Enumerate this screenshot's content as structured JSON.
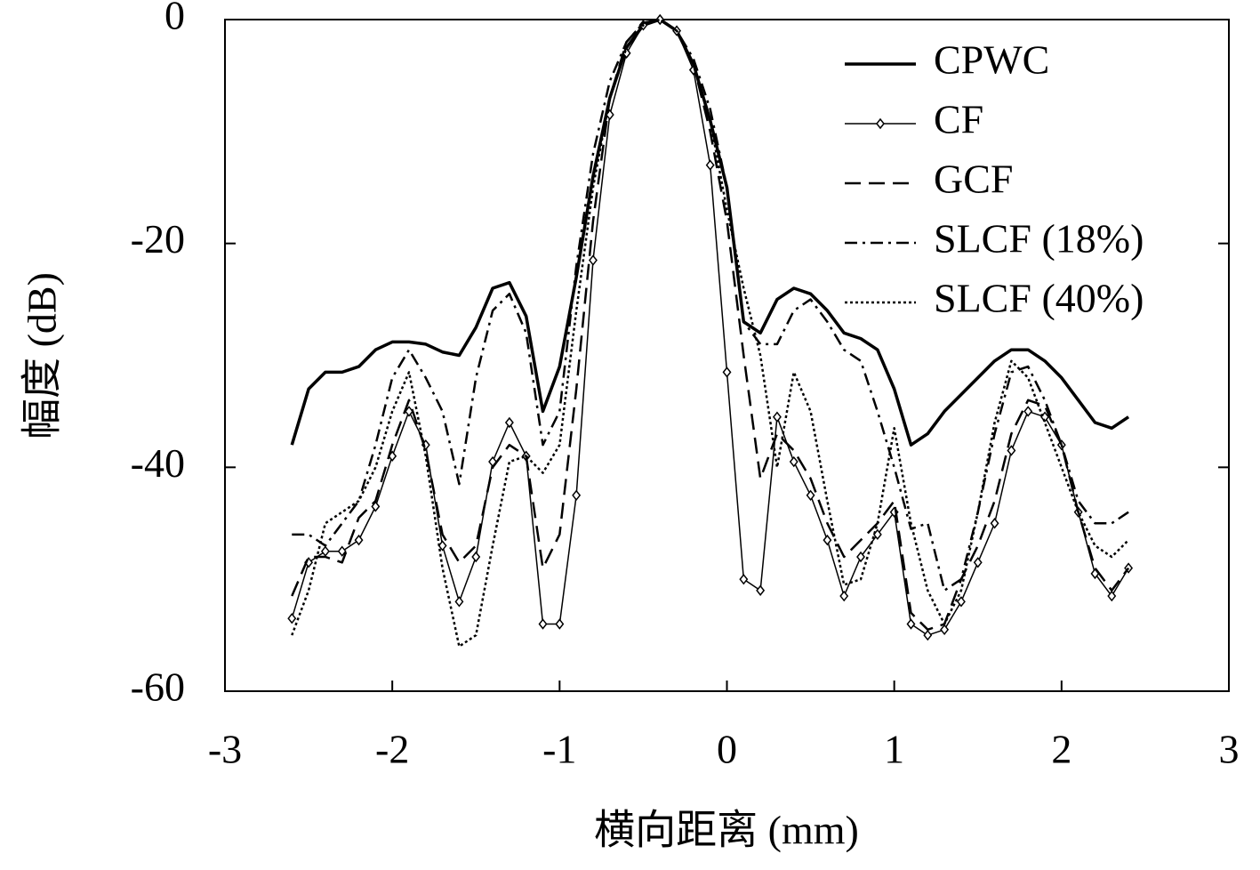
{
  "chart_data": {
    "type": "line",
    "xlabel": "横向距离 (mm)",
    "ylabel": "幅度 (dB)",
    "xlim": [
      -3,
      3
    ],
    "ylim": [
      -60,
      0
    ],
    "xticks": [
      -3,
      -2,
      -1,
      0,
      1,
      2,
      3
    ],
    "yticks": [
      -60,
      -40,
      -20,
      0
    ],
    "legend": "upper right",
    "x": [
      -2.6,
      -2.5,
      -2.4,
      -2.3,
      -2.2,
      -2.1,
      -2.0,
      -1.9,
      -1.8,
      -1.7,
      -1.6,
      -1.5,
      -1.4,
      -1.3,
      -1.2,
      -1.1,
      -1.0,
      -0.9,
      -0.8,
      -0.7,
      -0.6,
      -0.5,
      -0.4,
      -0.3,
      -0.2,
      -0.1,
      0.0,
      0.1,
      0.2,
      0.3,
      0.4,
      0.5,
      0.6,
      0.7,
      0.8,
      0.9,
      1.0,
      1.1,
      1.2,
      1.3,
      1.4,
      1.5,
      1.6,
      1.7,
      1.8,
      1.9,
      2.0,
      2.1,
      2.2,
      2.3,
      2.4
    ],
    "series": [
      {
        "name": "CPWC",
        "color": "#000000",
        "style": "solid",
        "width": 3.5,
        "marker": "none",
        "values": [
          -38,
          -33,
          -31.5,
          -31.5,
          -31,
          -29.5,
          -28.8,
          -28.8,
          -29,
          -29.7,
          -30,
          -27.5,
          -24,
          -23.5,
          -26.5,
          -35,
          -31,
          -23,
          -14,
          -7,
          -2.5,
          -0.5,
          0,
          -1,
          -4,
          -9,
          -15,
          -27,
          -28,
          -25,
          -24,
          -24.5,
          -26,
          -28,
          -28.5,
          -29.5,
          -33,
          -38,
          -37,
          -35,
          -33.5,
          -32,
          -30.5,
          -29.5,
          -29.5,
          -30.5,
          -32,
          -34,
          -36,
          -36.5,
          -35.5
        ]
      },
      {
        "name": "CF",
        "color": "#000000",
        "style": "solid",
        "width": 1.5,
        "marker": "diamond",
        "values": [
          -53.5,
          -48.5,
          -47.5,
          -47.5,
          -46.5,
          -43.5,
          -39,
          -35,
          -38,
          -47,
          -52,
          -48,
          -39.5,
          -36,
          -39,
          -54,
          -54,
          -42.5,
          -21.5,
          -8.5,
          -3,
          -0.5,
          0,
          -1,
          -4.5,
          -13,
          -31.5,
          -50,
          -51,
          -35.5,
          -39.5,
          -42.5,
          -46.5,
          -51.5,
          -48,
          -46,
          -44,
          -54,
          -55,
          -54.5,
          -52,
          -48.5,
          -45,
          -38.5,
          -35,
          -35.5,
          -38,
          -44,
          -49.5,
          -51.5,
          -49
        ]
      },
      {
        "name": "GCF",
        "color": "#000000",
        "style": "dashed",
        "width": 2.5,
        "marker": "none",
        "values": [
          -51.5,
          -48,
          -48,
          -48.5,
          -44.5,
          -43,
          -38,
          -34,
          -38.5,
          -46,
          -48.5,
          -47,
          -40,
          -38,
          -39,
          -49,
          -46,
          -33,
          -18,
          -7,
          -2,
          -0.3,
          0,
          -1,
          -4,
          -10,
          -18,
          -30,
          -41,
          -37,
          -38.5,
          -41,
          -45,
          -48,
          -46.5,
          -45,
          -43,
          -53,
          -54.5,
          -54,
          -50,
          -47,
          -43,
          -37,
          -34,
          -34.5,
          -38,
          -44,
          -49,
          -51,
          -49
        ]
      },
      {
        "name": "SLCF (18%)",
        "color": "#000000",
        "style": "dashdot",
        "width": 2.5,
        "marker": "none",
        "values": [
          -46,
          -46,
          -47,
          -45,
          -43,
          -38,
          -32,
          -29.5,
          -32,
          -35,
          -41.5,
          -32,
          -26,
          -24.5,
          -28,
          -38,
          -35,
          -22,
          -12,
          -5.5,
          -2,
          -0.3,
          0,
          -1,
          -3.5,
          -8,
          -15,
          -27,
          -29,
          -29,
          -26,
          -25,
          -27,
          -29.5,
          -30.5,
          -35,
          -40,
          -45.5,
          -45,
          -51,
          -50,
          -44,
          -37,
          -31.5,
          -31,
          -34,
          -38,
          -43,
          -45,
          -45,
          -44
        ]
      },
      {
        "name": "SLCF (40%)",
        "color": "#000000",
        "style": "dotted",
        "width": 2.5,
        "marker": "none",
        "values": [
          -55,
          -51,
          -45,
          -44,
          -43,
          -40,
          -35,
          -31.5,
          -39,
          -49,
          -56,
          -55,
          -47,
          -39.5,
          -39,
          -40.5,
          -38,
          -26,
          -15,
          -7,
          -2.5,
          -0.5,
          0,
          -1,
          -4,
          -9,
          -17,
          -24,
          -30,
          -40,
          -31.5,
          -35,
          -43,
          -50.5,
          -50,
          -45,
          -36.5,
          -45,
          -51,
          -54,
          -51,
          -44,
          -36,
          -30.5,
          -32,
          -36,
          -40,
          -44,
          -47,
          -48,
          -46.5
        ]
      }
    ]
  }
}
